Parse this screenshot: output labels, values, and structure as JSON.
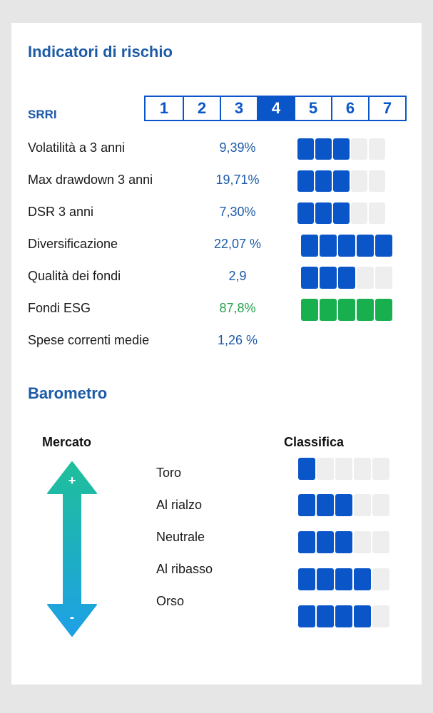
{
  "risk": {
    "title": "Indicatori di rischio",
    "srri": {
      "label": "SRRI",
      "levels": [
        "1",
        "2",
        "3",
        "4",
        "5",
        "6",
        "7"
      ],
      "selected": "4"
    },
    "rows": [
      {
        "label": "Volatilità a 3 anni",
        "value": "9,39%",
        "rating": 3,
        "max": 5,
        "color": "blue"
      },
      {
        "label": "Max drawdown 3 anni",
        "value": "19,71%",
        "rating": 3,
        "max": 5,
        "color": "blue"
      },
      {
        "label": "DSR 3 anni",
        "value": "7,30%",
        "rating": 3,
        "max": 5,
        "color": "blue"
      },
      {
        "label": "Diversificazione",
        "value": "22,07 %",
        "rating": 5,
        "max": 5,
        "color": "blue"
      },
      {
        "label": "Qualità dei fondi",
        "value": "2,9",
        "rating": 3,
        "max": 5,
        "color": "blue"
      },
      {
        "label": "Fondi ESG",
        "value": "87,8%",
        "rating": 5,
        "max": 5,
        "color": "green"
      },
      {
        "label": "Spese correnti medie",
        "value": "1,26 %",
        "rating": null,
        "max": 5,
        "color": "blue"
      }
    ]
  },
  "barometer": {
    "title": "Barometro",
    "market_label": "Mercato",
    "ranking_label": "Classifica",
    "arrow": {
      "top_symbol": "+",
      "bottom_symbol": "-"
    },
    "labels": [
      "Toro",
      "Al rialzo",
      "Neutrale",
      "Al ribasso",
      "Orso"
    ],
    "rankings": [
      1,
      3,
      3,
      4,
      4
    ],
    "max": 5
  },
  "colors": {
    "accent_blue": "#0a56c9",
    "title_blue": "#1d5aa8",
    "esg_green": "#18b04f",
    "value_green": "#20a34a",
    "bar_empty": "#eeeeee",
    "arrow_top": "#1fbf9a",
    "arrow_bottom": "#1ea0e6"
  }
}
